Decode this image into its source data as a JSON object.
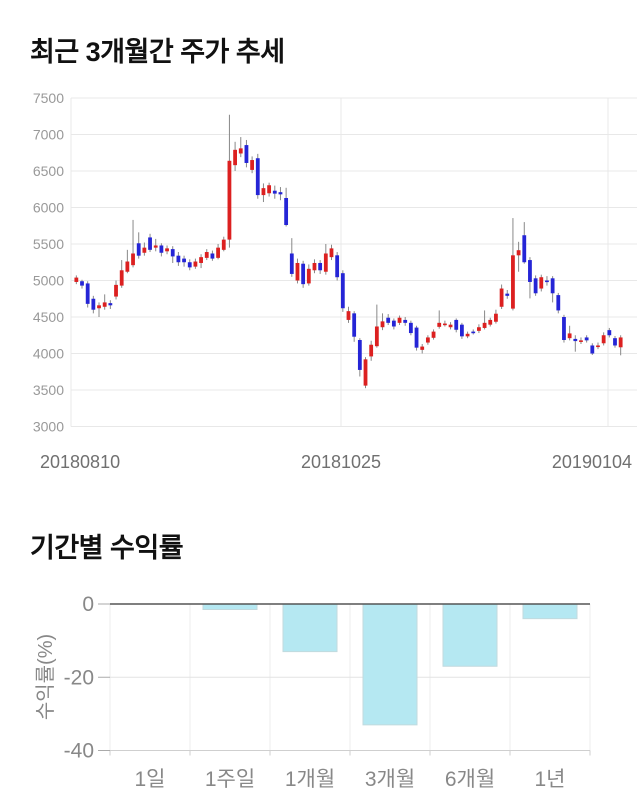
{
  "section1": {
    "title": "최근 3개월간 주가 추세"
  },
  "section2": {
    "title": "기간별 수익률"
  },
  "chart_data": [
    {
      "type": "candlestick",
      "title": "최근 3개월간 주가 추세",
      "ylim": [
        3000,
        7500
      ],
      "y_ticks": [
        7500,
        7000,
        6500,
        6000,
        5500,
        5000,
        4500,
        4000,
        3500,
        3000
      ],
      "x_labels": [
        "20180810",
        "20181025",
        "20190104"
      ],
      "grid": true,
      "legend": "none",
      "colors": {
        "up": "#dc2020",
        "down": "#2525d6",
        "wick": "#888888",
        "grid": "#e8e8e8",
        "tick_text": "#999999",
        "date_text": "#707070"
      },
      "candles_format": [
        "open",
        "close",
        "high",
        "low"
      ],
      "candles": [
        [
          4980,
          5040,
          5070,
          4950
        ],
        [
          4990,
          4930,
          5010,
          4890
        ],
        [
          4960,
          4680,
          4990,
          4630
        ],
        [
          4750,
          4600,
          4790,
          4550
        ],
        [
          4620,
          4660,
          4700,
          4500
        ],
        [
          4640,
          4700,
          4810,
          4600
        ],
        [
          4690,
          4660,
          4730,
          4610
        ],
        [
          4780,
          4940,
          5000,
          4740
        ],
        [
          4930,
          5140,
          5280,
          4900
        ],
        [
          5120,
          5260,
          5420,
          5100
        ],
        [
          5210,
          5370,
          5830,
          5180
        ],
        [
          5510,
          5340,
          5660,
          5300
        ],
        [
          5380,
          5450,
          5520,
          5340
        ],
        [
          5590,
          5420,
          5640,
          5390
        ],
        [
          5450,
          5480,
          5570,
          5400
        ],
        [
          5480,
          5380,
          5510,
          5330
        ],
        [
          5400,
          5440,
          5480,
          5360
        ],
        [
          5430,
          5330,
          5470,
          5240
        ],
        [
          5340,
          5250,
          5390,
          5200
        ],
        [
          5300,
          5250,
          5340,
          5190
        ],
        [
          5250,
          5180,
          5290,
          5140
        ],
        [
          5190,
          5260,
          5300,
          5160
        ],
        [
          5240,
          5320,
          5360,
          5170
        ],
        [
          5310,
          5390,
          5430,
          5280
        ],
        [
          5370,
          5300,
          5410,
          5270
        ],
        [
          5310,
          5450,
          5500,
          5290
        ],
        [
          5420,
          5560,
          5600,
          5400
        ],
        [
          5560,
          6640,
          7270,
          5450
        ],
        [
          6580,
          6790,
          6900,
          6500
        ],
        [
          6740,
          6810,
          6965,
          6690
        ],
        [
          6855,
          6610,
          6925,
          6550
        ],
        [
          6515,
          6650,
          6700,
          6470
        ],
        [
          6675,
          6170,
          6735,
          6120
        ],
        [
          6170,
          6265,
          6330,
          6075
        ],
        [
          6195,
          6305,
          6340,
          6150
        ],
        [
          6230,
          6190,
          6300,
          6120
        ],
        [
          6210,
          6180,
          6280,
          6100
        ],
        [
          6130,
          5760,
          6270,
          5740
        ],
        [
          5370,
          5090,
          5580,
          5050
        ],
        [
          5000,
          5240,
          5300,
          4960
        ],
        [
          5230,
          4950,
          5270,
          4900
        ],
        [
          4960,
          5160,
          5220,
          4930
        ],
        [
          5140,
          5240,
          5290,
          5100
        ],
        [
          5240,
          5140,
          5280,
          5090
        ],
        [
          5120,
          5370,
          5500,
          5080
        ],
        [
          5320,
          5440,
          5490,
          5280
        ],
        [
          5345,
          5045,
          5390,
          5000
        ],
        [
          5100,
          4620,
          5140,
          4570
        ],
        [
          4460,
          4580,
          4640,
          4420
        ],
        [
          4550,
          4230,
          4580,
          4160
        ],
        [
          4185,
          3775,
          4210,
          3685
        ],
        [
          3560,
          3920,
          3950,
          3525
        ],
        [
          3960,
          4120,
          4175,
          3900
        ],
        [
          4100,
          4370,
          4670,
          4080
        ],
        [
          4360,
          4440,
          4550,
          4320
        ],
        [
          4490,
          4420,
          4540,
          4390
        ],
        [
          4450,
          4370,
          4480,
          4330
        ],
        [
          4420,
          4490,
          4520,
          4390
        ],
        [
          4460,
          4420,
          4500,
          4380
        ],
        [
          4420,
          4280,
          4450,
          4250
        ],
        [
          4355,
          4080,
          4380,
          4040
        ],
        [
          4050,
          4095,
          4130,
          4000
        ],
        [
          4150,
          4220,
          4250,
          4120
        ],
        [
          4215,
          4300,
          4330,
          4190
        ],
        [
          4365,
          4420,
          4590,
          4340
        ],
        [
          4400,
          4410,
          4450,
          4370
        ],
        [
          4360,
          4395,
          4430,
          4330
        ],
        [
          4460,
          4325,
          4480,
          4290
        ],
        [
          4395,
          4235,
          4420,
          4200
        ],
        [
          4235,
          4270,
          4300,
          4210
        ],
        [
          4300,
          4290,
          4330,
          4260
        ],
        [
          4310,
          4360,
          4400,
          4280
        ],
        [
          4350,
          4420,
          4590,
          4330
        ],
        [
          4395,
          4460,
          4490,
          4370
        ],
        [
          4435,
          4545,
          4600,
          4410
        ],
        [
          4640,
          4890,
          4945,
          4610
        ],
        [
          4820,
          4790,
          4870,
          4750
        ],
        [
          4615,
          5345,
          5855,
          4590
        ],
        [
          5345,
          5415,
          5530,
          5120
        ],
        [
          5620,
          5250,
          5800,
          5230
        ],
        [
          5280,
          4980,
          5320,
          4755
        ],
        [
          5030,
          4825,
          5070,
          4790
        ],
        [
          4890,
          5045,
          5080,
          4850
        ],
        [
          5000,
          4980,
          5060,
          4930
        ],
        [
          5030,
          4825,
          5060,
          4700
        ],
        [
          4800,
          4590,
          4830,
          4550
        ],
        [
          4500,
          4185,
          4530,
          4150
        ],
        [
          4210,
          4275,
          4380,
          4180
        ],
        [
          4200,
          4170,
          4250,
          4025
        ],
        [
          4160,
          4180,
          4220,
          4130
        ],
        [
          4220,
          4180,
          4250,
          4150
        ],
        [
          4110,
          4000,
          4140,
          3980
        ],
        [
          4100,
          4110,
          4150,
          4060
        ],
        [
          4140,
          4250,
          4290,
          4110
        ],
        [
          4320,
          4250,
          4350,
          4220
        ],
        [
          4210,
          4110,
          4240,
          4080
        ],
        [
          4085,
          4220,
          4250,
          3975
        ]
      ]
    },
    {
      "type": "bar",
      "title": "기간별 수익률",
      "categories": [
        "1일",
        "1주일",
        "1개월",
        "3개월",
        "6개월",
        "1년"
      ],
      "values": [
        0,
        -1.5,
        -13,
        -33,
        -17,
        -4
      ],
      "ylabel": "수익률(%)",
      "y_ticks": [
        0,
        -20,
        -40
      ],
      "ylim": [
        -44,
        0
      ],
      "grid": true,
      "legend": "none",
      "colors": {
        "bar_fill": "#b5e8f2",
        "bar_border": "#c2dade",
        "zero_line": "#555555",
        "grid": "#e3e3e3",
        "axis_text": "#888888"
      }
    }
  ]
}
